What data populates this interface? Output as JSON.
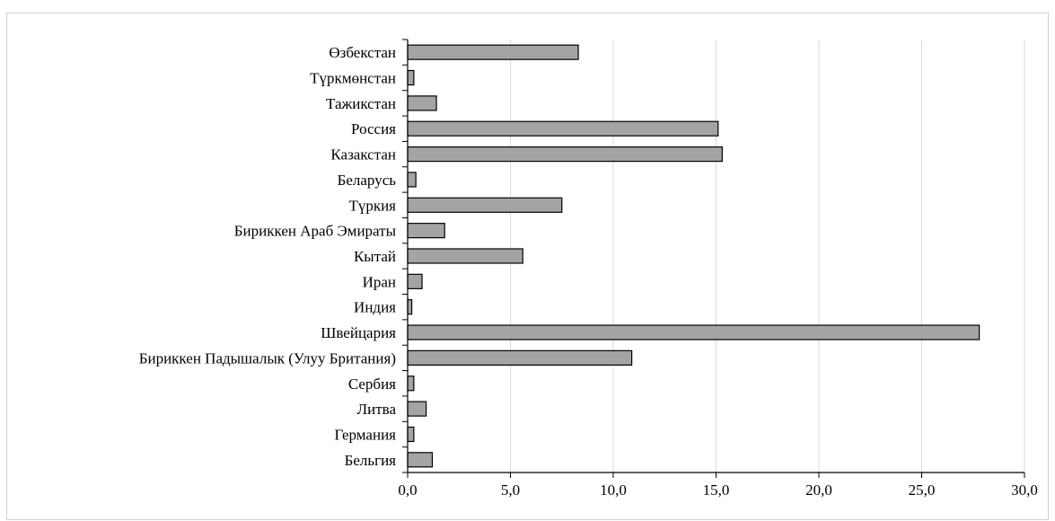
{
  "chart_data": {
    "type": "bar",
    "orientation": "horizontal",
    "categories": [
      "Өзбекстан",
      "Түркмөнстан",
      "Тажикстан",
      "Россия",
      "Казакстан",
      "Беларусь",
      "Түркия",
      "Бириккен Араб Эмираты",
      "Кытай",
      "Иран",
      "Индия",
      "Швейцария",
      "Бириккен Падышалык (Улуу Британия)",
      "Сербия",
      "Литва",
      "Германия",
      "Бельгия"
    ],
    "values": [
      8.3,
      0.3,
      1.4,
      15.1,
      15.3,
      0.4,
      7.5,
      1.8,
      5.6,
      0.7,
      0.2,
      27.8,
      10.9,
      0.3,
      0.9,
      0.3,
      1.2
    ],
    "xlim": [
      0,
      30
    ],
    "x_ticks": [
      "0,0",
      "5,0",
      "10,0",
      "15,0",
      "20,0",
      "25,0",
      "30,0"
    ],
    "title": "",
    "xlabel": "",
    "ylabel": "",
    "grid": "vertical",
    "legend": "none",
    "colors": {
      "bar_fill": "#a6a3a3",
      "bar_stroke": "#000000",
      "grid": "#d9d9d9",
      "axis": "#000000"
    }
  }
}
